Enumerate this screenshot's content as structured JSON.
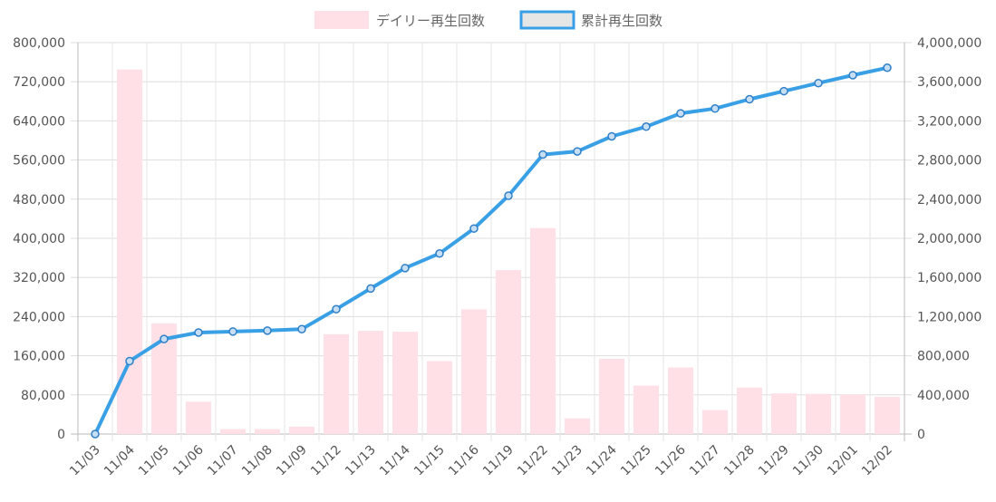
{
  "chart_data": {
    "type": "bar+line",
    "categories": [
      "11/03",
      "11/04",
      "11/05",
      "11/06",
      "11/07",
      "11/08",
      "11/09",
      "11/12",
      "11/13",
      "11/14",
      "11/15",
      "11/16",
      "11/19",
      "11/22",
      "11/23",
      "11/24",
      "11/25",
      "11/26",
      "11/27",
      "11/28",
      "11/29",
      "11/30",
      "12/01",
      "12/02"
    ],
    "series": [
      {
        "name": "デイリー再生回数",
        "type": "bar",
        "axis": "left",
        "color": "#ffe0e6",
        "values": [
          0,
          745000,
          226000,
          66000,
          10000,
          10000,
          15000,
          204000,
          211000,
          209000,
          149000,
          255000,
          335000,
          421000,
          32000,
          154000,
          99000,
          136000,
          49000,
          95000,
          83000,
          82000,
          81000,
          76000
        ]
      },
      {
        "name": "累計再生回数",
        "type": "line",
        "axis": "right",
        "color": "#3aa0e6",
        "values": [
          0,
          745000,
          971000,
          1037000,
          1047000,
          1057000,
          1072000,
          1276000,
          1487000,
          1696000,
          1845000,
          2100000,
          2435000,
          2856000,
          2888000,
          3042000,
          3141000,
          3277000,
          3326000,
          3421000,
          3504000,
          3586000,
          3667000,
          3743000
        ]
      }
    ],
    "y_left": {
      "min": 0,
      "max": 800000,
      "ticks": [
        "800,000",
        "720,000",
        "640,000",
        "560,000",
        "480,000",
        "400,000",
        "320,000",
        "240,000",
        "160,000",
        "80,000",
        "0"
      ]
    },
    "y_right": {
      "min": 0,
      "max": 4000000,
      "ticks": [
        "4,000,000",
        "3,600,000",
        "3,200,000",
        "2,800,000",
        "2,400,000",
        "2,000,000",
        "1,600,000",
        "1,200,000",
        "800,000",
        "400,000",
        "0"
      ]
    },
    "grid": true,
    "legend_position": "top"
  },
  "legend": {
    "daily_label": "デイリー再生回数",
    "cumulative_label": "累計再生回数"
  }
}
